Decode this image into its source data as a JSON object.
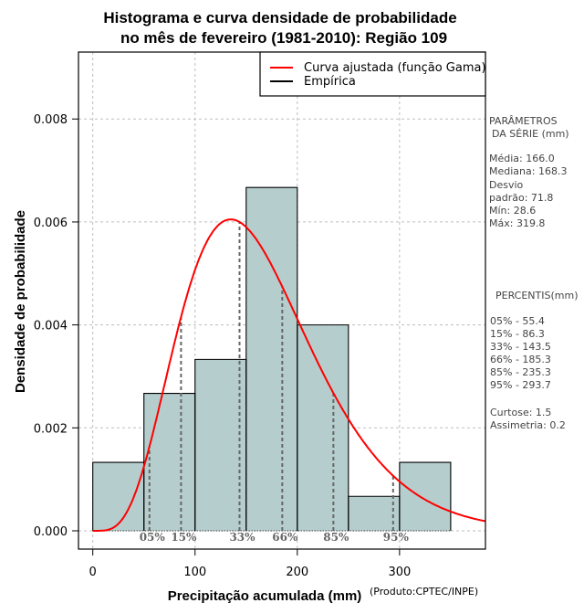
{
  "chart_data": {
    "type": "bar",
    "title_lines": [
      "Histograma e curva densidade de probabilidade",
      "no mês de fevereiro (1981-2010): Região 109"
    ],
    "xlabel": "Precipitação acumulada (mm)",
    "ylabel": "Densidade de probabilidade",
    "credit": "(Produto:CPTEC/INPE)",
    "xlim": [
      -14,
      384
    ],
    "ylim": [
      0,
      0.0093
    ],
    "x_ticks": [
      0,
      100,
      200,
      300
    ],
    "x_tick_labels": [
      "0",
      "100",
      "200",
      "300"
    ],
    "y_ticks": [
      0,
      0.002,
      0.004,
      0.006,
      0.008
    ],
    "y_tick_labels": [
      "0.000",
      "0.002",
      "0.004",
      "0.006",
      "0.008"
    ],
    "grid": true,
    "histogram": {
      "bin_edges": [
        0,
        50,
        100,
        150,
        200,
        250,
        300,
        350
      ],
      "density": [
        0.00133,
        0.00267,
        0.00333,
        0.00667,
        0.004,
        0.00067,
        0.00133
      ],
      "fill_color": "#b5cecd"
    },
    "fitted_curve": {
      "name": "Curva ajustada (função Gama)",
      "distribution": "gamma",
      "mean": 166.0,
      "sd": 71.8,
      "peak_density": 0.00605,
      "color": "#ff0000"
    },
    "percentile_markers": [
      {
        "label": "05%",
        "x": 55.4
      },
      {
        "label": "15%",
        "x": 86.3
      },
      {
        "label": "33%",
        "x": 143.5
      },
      {
        "label": "66%",
        "x": 185.3
      },
      {
        "label": "85%",
        "x": 235.3
      },
      {
        "label": "95%",
        "x": 293.7
      }
    ],
    "legend": {
      "position": "top-right",
      "entries": [
        {
          "label": "Curva ajustada (função Gama)",
          "color": "#ff0000"
        },
        {
          "label": "Empírica",
          "color": "#000000"
        }
      ]
    }
  },
  "side_panel": {
    "params_title_1": "PARÂMETROS",
    "params_title_2": "DA SÉRIE (mm)",
    "media": "Média:  166.0",
    "mediana": "Mediana:  168.3",
    "desvio_1": "Desvio",
    "desvio_2": "padrão:  71.8",
    "min": "Mín:  28.6",
    "max": "Máx:  319.8",
    "percentis_title": "PERCENTIS(mm)",
    "percentis": [
      "05% -  55.4",
      "15% -  86.3",
      "33% -  143.5",
      "66% -  185.3",
      "85% -  235.3",
      "95% -  293.7"
    ],
    "curtose": "Curtose:  1.5",
    "assimetria": "Assimetria:  0.2"
  }
}
